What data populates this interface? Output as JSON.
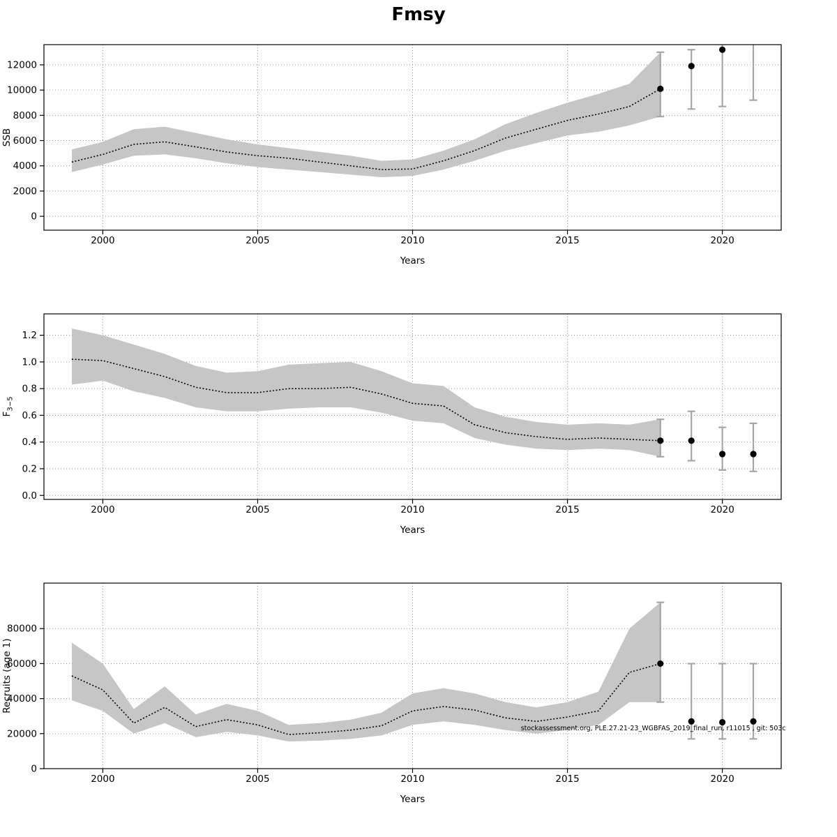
{
  "title": "Fmsy",
  "chart_data": [
    {
      "type": "line",
      "title": "Fmsy",
      "xlabel": "Years",
      "ylabel": "SSB",
      "ylabel_sub": "",
      "xlim": [
        1998.1,
        2021.9
      ],
      "ylim": [
        -1100,
        13600
      ],
      "xticks": [
        2000,
        2005,
        2010,
        2015,
        2020
      ],
      "xtick_labels": [
        "2000",
        "2005",
        "2010",
        "2015",
        "2020"
      ],
      "yticks": [
        0,
        2000,
        4000,
        6000,
        8000,
        10000,
        12000
      ],
      "ytick_labels": [
        "0",
        "2000",
        "4000",
        "6000",
        "8000",
        "10000",
        "12000"
      ],
      "years": [
        1999,
        2000,
        2001,
        2002,
        2003,
        2004,
        2005,
        2006,
        2007,
        2008,
        2009,
        2010,
        2011,
        2012,
        2013,
        2014,
        2015,
        2016,
        2017,
        2018
      ],
      "values": [
        4300,
        4900,
        5700,
        5900,
        5500,
        5100,
        4800,
        4600,
        4300,
        4000,
        3700,
        3750,
        4400,
        5200,
        6200,
        6900,
        7600,
        8100,
        8700,
        10100
      ],
      "lo": [
        3500,
        4100,
        4800,
        4900,
        4600,
        4200,
        3900,
        3700,
        3500,
        3300,
        3100,
        3200,
        3700,
        4400,
        5200,
        5800,
        6400,
        6700,
        7200,
        7900
      ],
      "hi": [
        5300,
        5900,
        6900,
        7100,
        6600,
        6100,
        5700,
        5400,
        5100,
        4800,
        4400,
        4500,
        5200,
        6100,
        7300,
        8200,
        9000,
        9700,
        10500,
        13000
      ],
      "final_bar": {
        "lo": 7900,
        "hi": 13000
      },
      "forecast": [
        {
          "year": 2019,
          "value": 11900,
          "lo": 8500,
          "hi": 13200
        },
        {
          "year": 2020,
          "value": 13200,
          "lo": 8700,
          "hi": 14500
        },
        {
          "year": 2021,
          "value": null,
          "lo": 9200,
          "hi": 14500
        }
      ]
    },
    {
      "type": "line",
      "title": "",
      "xlabel": "Years",
      "ylabel": "F",
      "ylabel_sub": "3−5",
      "xlim": [
        1998.1,
        2021.9
      ],
      "ylim": [
        -0.03,
        1.36
      ],
      "xticks": [
        2000,
        2005,
        2010,
        2015,
        2020
      ],
      "xtick_labels": [
        "2000",
        "2005",
        "2010",
        "2015",
        "2020"
      ],
      "yticks": [
        0.0,
        0.2,
        0.4,
        0.6,
        0.8,
        1.0,
        1.2
      ],
      "ytick_labels": [
        "0.0",
        "0.2",
        "0.4",
        "0.6",
        "0.8",
        "1.0",
        "1.2"
      ],
      "years": [
        1999,
        2000,
        2001,
        2002,
        2003,
        2004,
        2005,
        2006,
        2007,
        2008,
        2009,
        2010,
        2011,
        2012,
        2013,
        2014,
        2015,
        2016,
        2017,
        2018
      ],
      "values": [
        1.02,
        1.01,
        0.95,
        0.89,
        0.81,
        0.77,
        0.77,
        0.8,
        0.8,
        0.81,
        0.76,
        0.69,
        0.67,
        0.53,
        0.47,
        0.44,
        0.42,
        0.43,
        0.42,
        0.41
      ],
      "lo": [
        0.83,
        0.86,
        0.78,
        0.73,
        0.66,
        0.63,
        0.63,
        0.65,
        0.66,
        0.66,
        0.62,
        0.56,
        0.54,
        0.43,
        0.38,
        0.35,
        0.34,
        0.35,
        0.34,
        0.29
      ],
      "hi": [
        1.25,
        1.2,
        1.13,
        1.06,
        0.97,
        0.92,
        0.93,
        0.98,
        0.99,
        1.0,
        0.93,
        0.84,
        0.82,
        0.66,
        0.59,
        0.55,
        0.53,
        0.54,
        0.53,
        0.57
      ],
      "final_bar": {
        "lo": 0.29,
        "hi": 0.57
      },
      "forecast": [
        {
          "year": 2019,
          "value": 0.41,
          "lo": 0.26,
          "hi": 0.63
        },
        {
          "year": 2020,
          "value": 0.31,
          "lo": 0.19,
          "hi": 0.51
        },
        {
          "year": 2021,
          "value": 0.31,
          "lo": 0.18,
          "hi": 0.54
        }
      ]
    },
    {
      "type": "line",
      "title": "",
      "xlabel": "Years",
      "ylabel": "Recruits (age 1)",
      "ylabel_sub": "",
      "xlim": [
        1998.1,
        2021.9
      ],
      "ylim": [
        0,
        106000
      ],
      "xticks": [
        2000,
        2005,
        2010,
        2015,
        2020
      ],
      "xtick_labels": [
        "2000",
        "2005",
        "2010",
        "2015",
        "2020"
      ],
      "yticks": [
        0,
        20000,
        40000,
        60000,
        80000
      ],
      "ytick_labels": [
        "0",
        "20000",
        "40000",
        "60000",
        "80000"
      ],
      "years": [
        1999,
        2000,
        2001,
        2002,
        2003,
        2004,
        2005,
        2006,
        2007,
        2008,
        2009,
        2010,
        2011,
        2012,
        2013,
        2014,
        2015,
        2016,
        2017,
        2018
      ],
      "values": [
        53000,
        45000,
        26000,
        35000,
        24000,
        28000,
        25000,
        19500,
        20500,
        22000,
        24500,
        33000,
        35500,
        33500,
        29000,
        27000,
        29500,
        33000,
        55000,
        60000
      ],
      "lo": [
        39000,
        33000,
        20000,
        26000,
        18000,
        21000,
        19000,
        15500,
        16000,
        17000,
        19000,
        25000,
        27000,
        25000,
        22000,
        20000,
        22000,
        25000,
        38000,
        38000
      ],
      "hi": [
        72000,
        60000,
        34000,
        47000,
        31000,
        37000,
        33000,
        25000,
        26000,
        28000,
        32000,
        43000,
        46000,
        43000,
        38000,
        35000,
        38000,
        44000,
        80000,
        95000
      ],
      "final_bar": {
        "lo": 38000,
        "hi": 95000
      },
      "forecast": [
        {
          "year": 2019,
          "value": 27000,
          "lo": 17000,
          "hi": 60000
        },
        {
          "year": 2020,
          "value": 26500,
          "lo": 17000,
          "hi": 60000
        },
        {
          "year": 2021,
          "value": 27000,
          "lo": 17000,
          "hi": 60000
        }
      ],
      "annotation": {
        "text": "stockassessment.org, PLE.27.21-23_WGBFAS_2019_final_run, r11015 , git: 503c",
        "x": 2022.05,
        "y": 21900,
        "anchor": "end"
      }
    }
  ],
  "style": {
    "band_color": "#c6c6c6",
    "errorbar_color": "#a6a6a6",
    "grid_color": "#8f8f8f",
    "line_color": "#000000"
  }
}
